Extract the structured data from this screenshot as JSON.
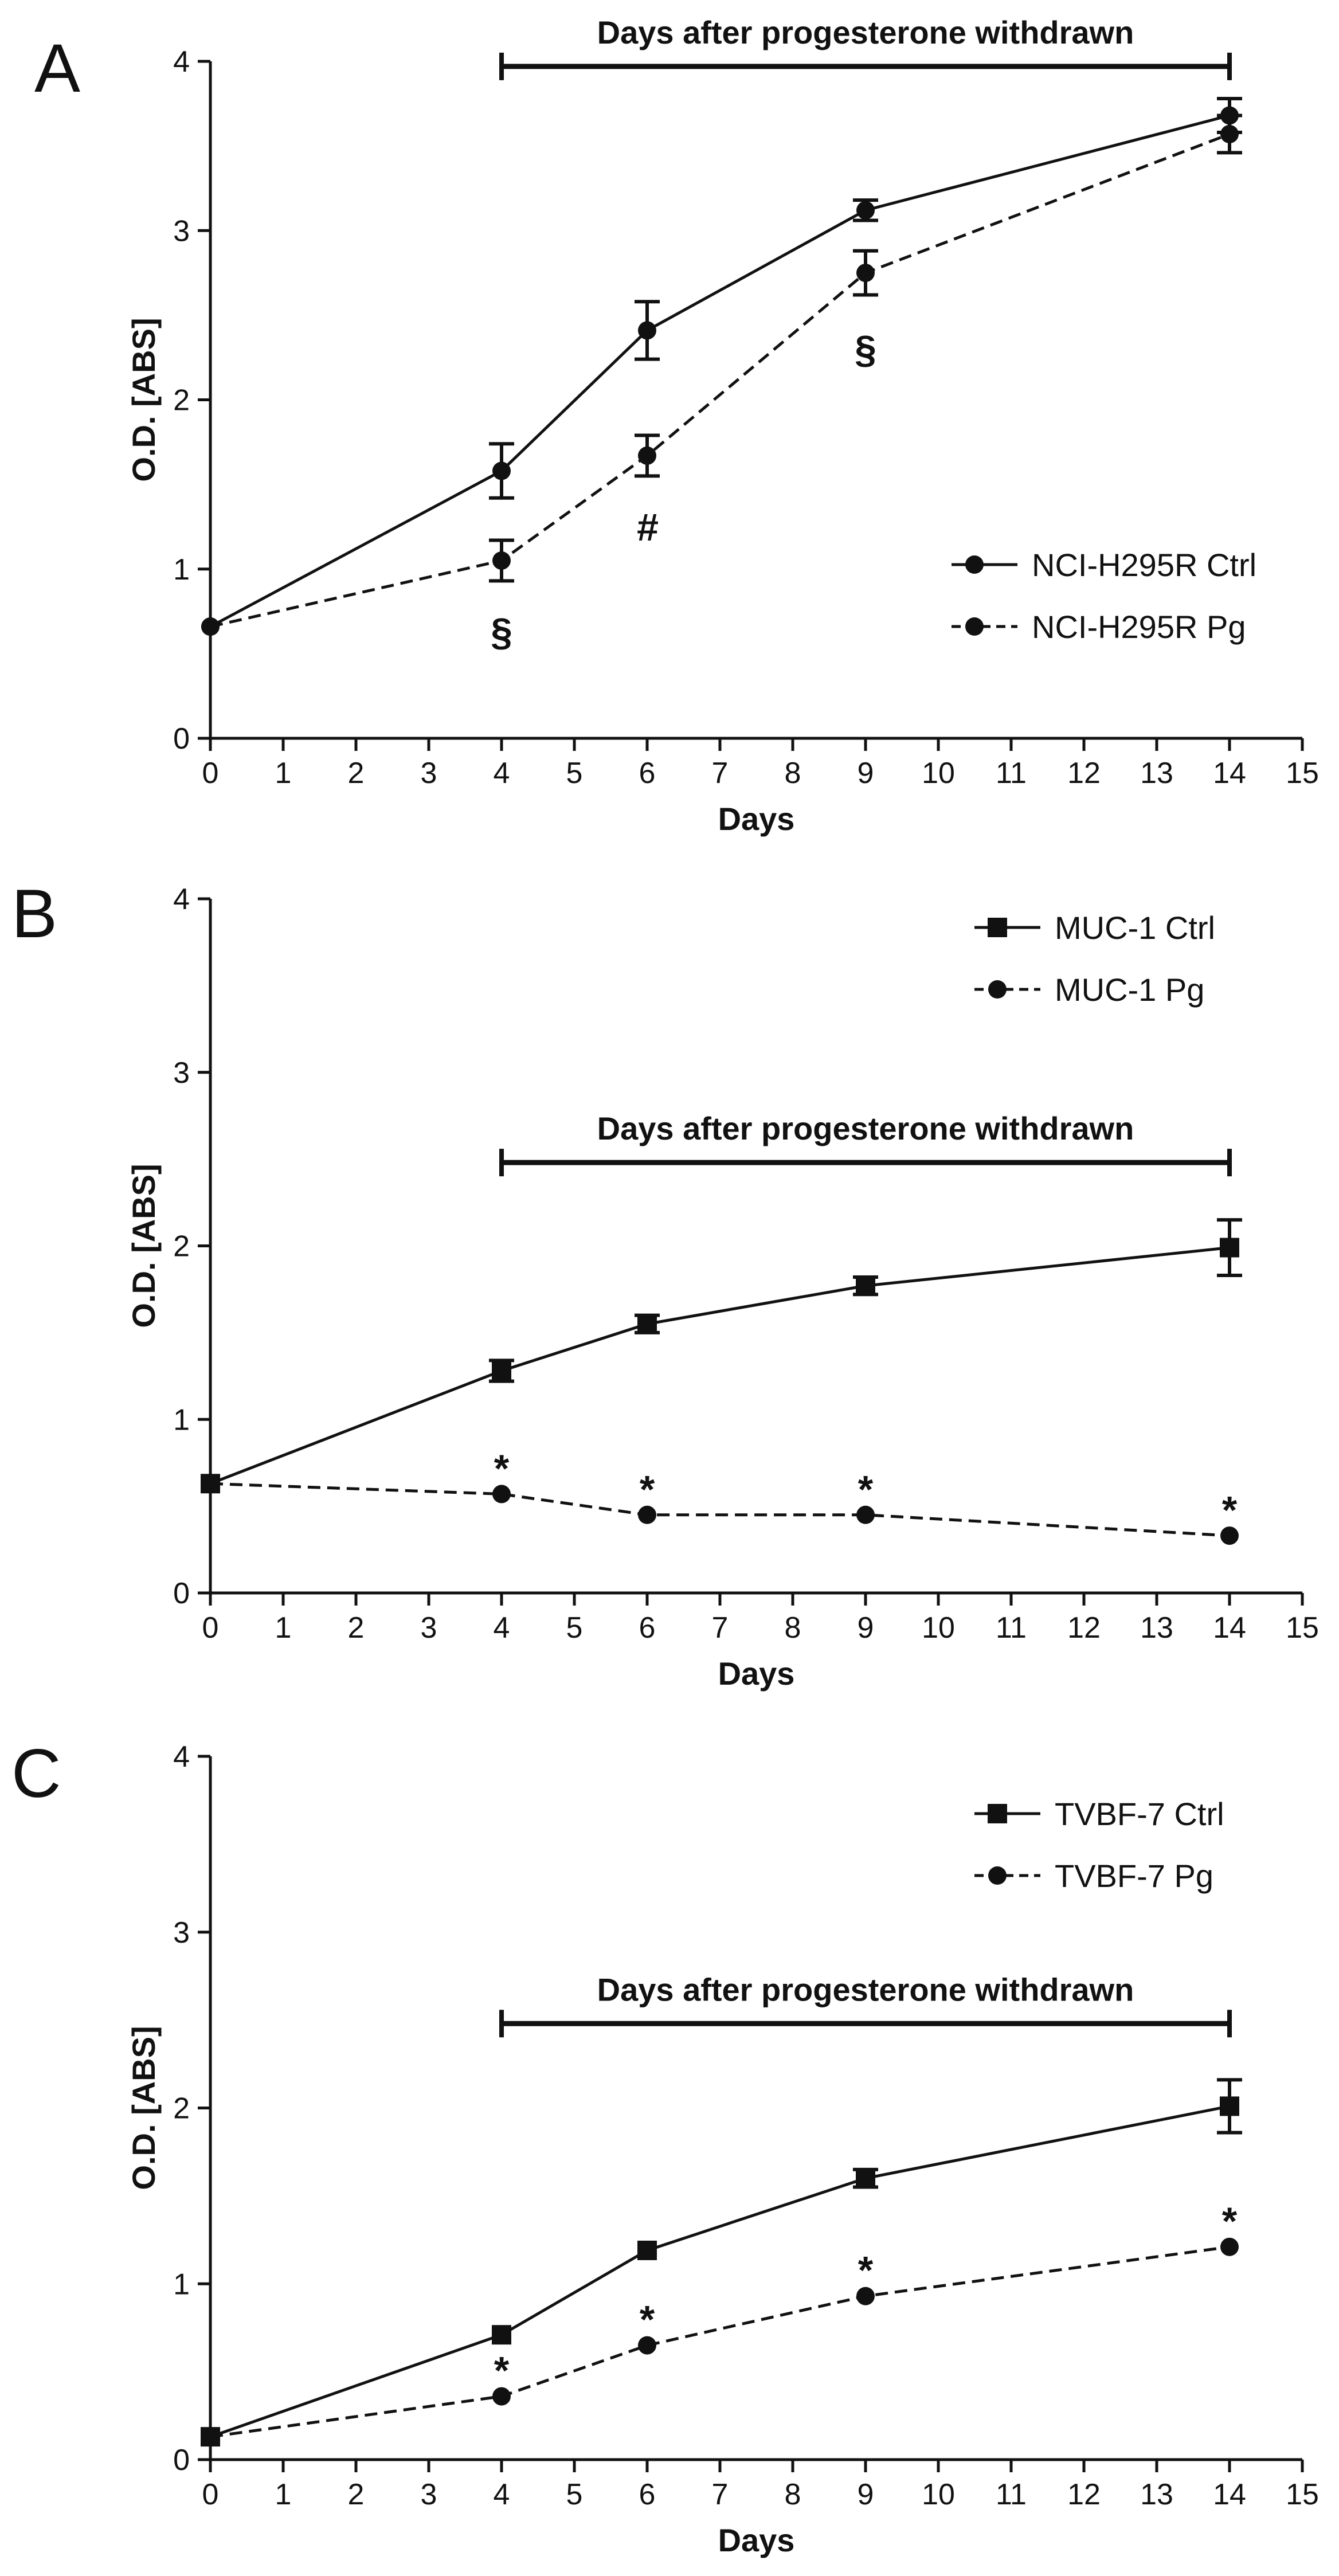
{
  "chart_data": [
    {
      "panel_label": "A",
      "type": "line",
      "xlabel": "Days",
      "ylabel": "O.D. [ABS]",
      "xlim": [
        0,
        15
      ],
      "ylim": [
        0,
        4
      ],
      "xticks": [
        0,
        1,
        2,
        3,
        4,
        5,
        6,
        7,
        8,
        9,
        10,
        11,
        12,
        13,
        14,
        15
      ],
      "yticks": [
        0,
        1,
        2,
        3,
        4
      ],
      "bracket": {
        "label": "Days after progesterone withdrawn",
        "from": 4,
        "to": 14,
        "y": 3.97,
        "text_above": true
      },
      "legend_position": "bottom-right",
      "series": [
        {
          "name": "NCI-H295R Ctrl",
          "line": "solid",
          "marker": "circle",
          "x": [
            0,
            4,
            6,
            9,
            14
          ],
          "y": [
            0.66,
            1.58,
            2.41,
            3.12,
            3.68
          ],
          "err": [
            0,
            0.16,
            0.17,
            0.06,
            0.1
          ]
        },
        {
          "name": "NCI-H295R Pg",
          "line": "dashed",
          "marker": "circle",
          "x": [
            0,
            4,
            6,
            9,
            14
          ],
          "y": [
            0.66,
            1.05,
            1.67,
            2.75,
            3.57
          ],
          "err": [
            0,
            0.12,
            0.12,
            0.13,
            0.11
          ]
        }
      ],
      "annotations": [
        {
          "text": "§",
          "x": 4,
          "y": 0.63,
          "italic": false
        },
        {
          "text": "#",
          "x": 6,
          "y": 1.25,
          "italic": true
        },
        {
          "text": "§",
          "x": 9,
          "y": 2.3,
          "italic": false
        }
      ]
    },
    {
      "panel_label": "B",
      "type": "line",
      "xlabel": "Days",
      "ylabel": "O.D. [ABS]",
      "xlim": [
        0,
        15
      ],
      "ylim": [
        0,
        4
      ],
      "xticks": [
        0,
        1,
        2,
        3,
        4,
        5,
        6,
        7,
        8,
        9,
        10,
        11,
        12,
        13,
        14,
        15
      ],
      "yticks": [
        0,
        1,
        2,
        3,
        4
      ],
      "bracket": {
        "label": "Days after progesterone withdrawn",
        "from": 4,
        "to": 14,
        "y": 2.48,
        "text_above": true
      },
      "legend_position": "top-right",
      "series": [
        {
          "name": "MUC-1 Ctrl",
          "line": "solid",
          "marker": "square",
          "x": [
            0,
            4,
            6,
            9,
            14
          ],
          "y": [
            0.63,
            1.28,
            1.55,
            1.77,
            1.99
          ],
          "err": [
            0,
            0.06,
            0.05,
            0.05,
            0.16
          ]
        },
        {
          "name": "MUC-1 Pg",
          "line": "dashed",
          "marker": "circle",
          "x": [
            0,
            4,
            6,
            9,
            14
          ],
          "y": [
            0.63,
            0.57,
            0.45,
            0.45,
            0.33
          ],
          "err": [
            0,
            0,
            0,
            0,
            0
          ]
        }
      ],
      "annotations": [
        {
          "text": "*",
          "x": 4,
          "y": 0.72,
          "italic": false
        },
        {
          "text": "*",
          "x": 6,
          "y": 0.6,
          "italic": false
        },
        {
          "text": "*",
          "x": 9,
          "y": 0.6,
          "italic": false
        },
        {
          "text": "*",
          "x": 14,
          "y": 0.48,
          "italic": false
        }
      ]
    },
    {
      "panel_label": "C",
      "type": "line",
      "xlabel": "Days",
      "ylabel": "O.D. [ABS]",
      "xlim": [
        0,
        15
      ],
      "ylim": [
        0,
        4
      ],
      "xticks": [
        0,
        1,
        2,
        3,
        4,
        5,
        6,
        7,
        8,
        9,
        10,
        11,
        12,
        13,
        14,
        15
      ],
      "yticks": [
        0,
        1,
        2,
        3,
        4
      ],
      "bracket": {
        "label": "Days after progesterone withdrawn",
        "from": 4,
        "to": 14,
        "y": 2.48,
        "text_above": true
      },
      "legend_position": "top-right",
      "series": [
        {
          "name": "TVBF-7 Ctrl",
          "line": "solid",
          "marker": "square",
          "x": [
            0,
            4,
            6,
            9,
            14
          ],
          "y": [
            0.13,
            0.71,
            1.19,
            1.6,
            2.01
          ],
          "err": [
            0,
            0,
            0,
            0.05,
            0.15
          ]
        },
        {
          "name": "TVBF-7 Pg",
          "line": "dashed",
          "marker": "circle",
          "x": [
            0,
            4,
            6,
            9,
            14
          ],
          "y": [
            0.13,
            0.36,
            0.65,
            0.93,
            1.21
          ],
          "err": [
            0,
            0,
            0,
            0,
            0
          ]
        }
      ],
      "annotations": [
        {
          "text": "*",
          "x": 4,
          "y": 0.51,
          "italic": false
        },
        {
          "text": "*",
          "x": 6,
          "y": 0.8,
          "italic": false
        },
        {
          "text": "*",
          "x": 9,
          "y": 1.08,
          "italic": false
        },
        {
          "text": "*",
          "x": 14,
          "y": 1.36,
          "italic": false
        }
      ]
    }
  ]
}
